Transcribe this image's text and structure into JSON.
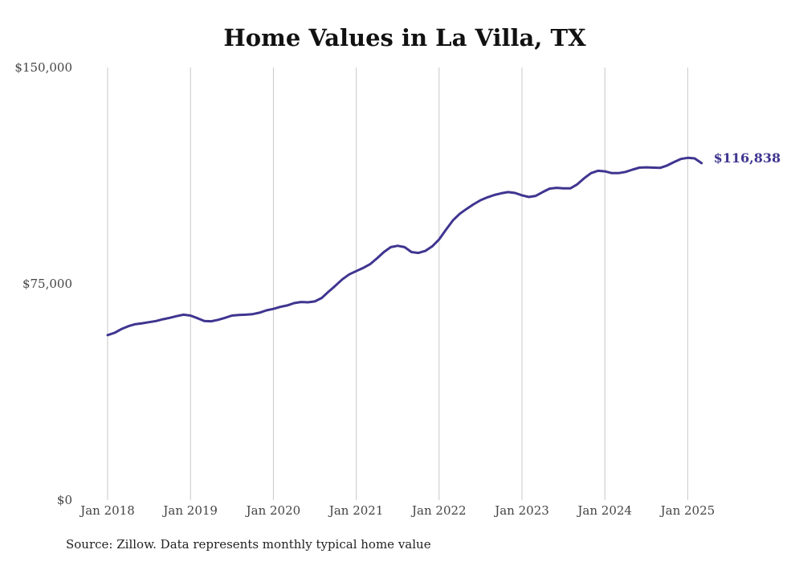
{
  "chart_data": {
    "type": "line",
    "title": "Home Values in La Villa, TX",
    "xlabel": "",
    "ylabel": "",
    "source": "Source: Zillow. Data represents monthly typical home value",
    "ylim": [
      0,
      150000
    ],
    "y_ticks": [
      {
        "value": 0,
        "label": "$0"
      },
      {
        "value": 75000,
        "label": "$75,000"
      },
      {
        "value": 150000,
        "label": "$150,000"
      }
    ],
    "x_ticks": [
      {
        "date": "2018-01",
        "label": "Jan 2018"
      },
      {
        "date": "2019-01",
        "label": "Jan 2019"
      },
      {
        "date": "2020-01",
        "label": "Jan 2020"
      },
      {
        "date": "2021-01",
        "label": "Jan 2021"
      },
      {
        "date": "2022-01",
        "label": "Jan 2022"
      },
      {
        "date": "2023-01",
        "label": "Jan 2023"
      },
      {
        "date": "2024-01",
        "label": "Jan 2024"
      },
      {
        "date": "2025-01",
        "label": "Jan 2025"
      }
    ],
    "grid": "vertical",
    "line_color": "#3f3590",
    "end_label": "$116,838",
    "series": [
      {
        "points": [
          [
            "2018-01",
            57200
          ],
          [
            "2018-02",
            58000
          ],
          [
            "2018-03",
            59300
          ],
          [
            "2018-04",
            60300
          ],
          [
            "2018-05",
            61000
          ],
          [
            "2018-06",
            61300
          ],
          [
            "2018-07",
            61700
          ],
          [
            "2018-08",
            62100
          ],
          [
            "2018-09",
            62700
          ],
          [
            "2018-10",
            63200
          ],
          [
            "2018-11",
            63800
          ],
          [
            "2018-12",
            64300
          ],
          [
            "2019-01",
            64000
          ],
          [
            "2019-02",
            63100
          ],
          [
            "2019-03",
            62100
          ],
          [
            "2019-04",
            62000
          ],
          [
            "2019-05",
            62500
          ],
          [
            "2019-06",
            63200
          ],
          [
            "2019-07",
            64000
          ],
          [
            "2019-08",
            64200
          ],
          [
            "2019-09",
            64300
          ],
          [
            "2019-10",
            64500
          ],
          [
            "2019-11",
            65000
          ],
          [
            "2019-12",
            65800
          ],
          [
            "2020-01",
            66300
          ],
          [
            "2020-02",
            67000
          ],
          [
            "2020-03",
            67500
          ],
          [
            "2020-04",
            68300
          ],
          [
            "2020-05",
            68700
          ],
          [
            "2020-06",
            68600
          ],
          [
            "2020-07",
            68900
          ],
          [
            "2020-08",
            70100
          ],
          [
            "2020-09",
            72300
          ],
          [
            "2020-10",
            74400
          ],
          [
            "2020-11",
            76600
          ],
          [
            "2020-12",
            78300
          ],
          [
            "2021-01",
            79400
          ],
          [
            "2021-02",
            80500
          ],
          [
            "2021-03",
            81800
          ],
          [
            "2021-04",
            83800
          ],
          [
            "2021-05",
            86000
          ],
          [
            "2021-06",
            87700
          ],
          [
            "2021-07",
            88200
          ],
          [
            "2021-08",
            87700
          ],
          [
            "2021-09",
            86000
          ],
          [
            "2021-10",
            85700
          ],
          [
            "2021-11",
            86400
          ],
          [
            "2021-12",
            88000
          ],
          [
            "2022-01",
            90400
          ],
          [
            "2022-02",
            93800
          ],
          [
            "2022-03",
            97000
          ],
          [
            "2022-04",
            99300
          ],
          [
            "2022-05",
            101000
          ],
          [
            "2022-06",
            102600
          ],
          [
            "2022-07",
            104000
          ],
          [
            "2022-08",
            105000
          ],
          [
            "2022-09",
            105800
          ],
          [
            "2022-10",
            106400
          ],
          [
            "2022-11",
            106800
          ],
          [
            "2022-12",
            106500
          ],
          [
            "2023-01",
            105700
          ],
          [
            "2023-02",
            105100
          ],
          [
            "2023-03",
            105500
          ],
          [
            "2023-04",
            106800
          ],
          [
            "2023-05",
            108000
          ],
          [
            "2023-06",
            108300
          ],
          [
            "2023-07",
            108100
          ],
          [
            "2023-08",
            108100
          ],
          [
            "2023-09",
            109500
          ],
          [
            "2023-10",
            111600
          ],
          [
            "2023-11",
            113400
          ],
          [
            "2023-12",
            114200
          ],
          [
            "2024-01",
            114000
          ],
          [
            "2024-02",
            113400
          ],
          [
            "2024-03",
            113400
          ],
          [
            "2024-04",
            113800
          ],
          [
            "2024-05",
            114600
          ],
          [
            "2024-06",
            115300
          ],
          [
            "2024-07",
            115400
          ],
          [
            "2024-08",
            115300
          ],
          [
            "2024-09",
            115200
          ],
          [
            "2024-10",
            116000
          ],
          [
            "2024-11",
            117200
          ],
          [
            "2024-12",
            118300
          ],
          [
            "2025-01",
            118700
          ],
          [
            "2025-02",
            118500
          ],
          [
            "2025-03",
            116838
          ]
        ]
      }
    ]
  }
}
